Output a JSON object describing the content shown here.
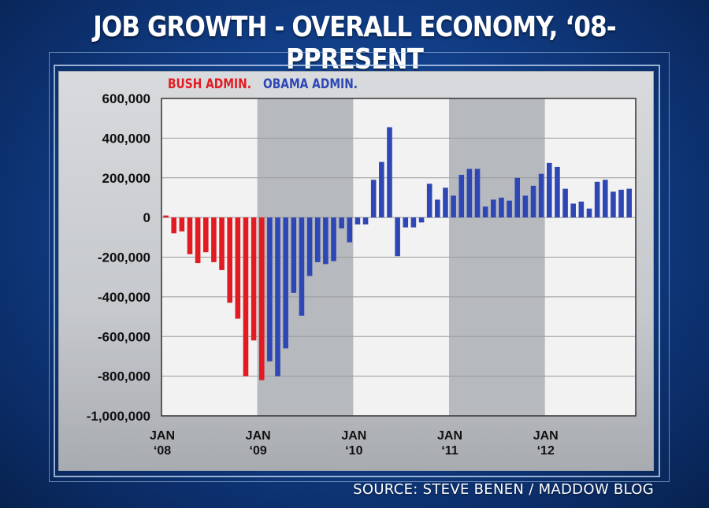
{
  "page": {
    "title": "JOB GROWTH - OVERALL ECONOMY, ‘08-PPRESENT",
    "source": "SOURCE: STEVE BENEN / MADDOW BLOG"
  },
  "colors": {
    "bush": "#e21b22",
    "obama": "#2f47b5",
    "stripe_dark": "#b6b9be",
    "stripe_light": "#f2f2f2",
    "grid": "#9a9a9a"
  },
  "chart_data": {
    "type": "bar",
    "title": "JOB GROWTH - OVERALL ECONOMY, ‘08-PPRESENT",
    "xlabel": "",
    "ylabel": "",
    "ylim": [
      -1000000,
      600000
    ],
    "yticks": [
      600000,
      400000,
      200000,
      0,
      -200000,
      -400000,
      -600000,
      -800000,
      -1000000
    ],
    "ytick_labels": [
      "600,000",
      "400,000",
      "200,000",
      "0",
      "-200,000",
      "-400,000",
      "-600,000",
      "-800,000",
      "-1,000,000"
    ],
    "xtick_labels": [
      {
        "month": "JAN",
        "year": "‘08",
        "index": 0
      },
      {
        "month": "JAN",
        "year": "‘09",
        "index": 12
      },
      {
        "month": "JAN",
        "year": "‘10",
        "index": 24
      },
      {
        "month": "JAN",
        "year": "‘11",
        "index": 36
      },
      {
        "month": "JAN",
        "year": "‘12",
        "index": 48
      }
    ],
    "legend": [
      {
        "name": "BUSH ADMIN.",
        "color": "#e21b22"
      },
      {
        "name": "OBAMA ADMIN.",
        "color": "#2f47b5"
      }
    ],
    "series": [
      {
        "name": "BUSH ADMIN.",
        "start_index": 0,
        "values": [
          10000,
          -80000,
          -70000,
          -185000,
          -230000,
          -175000,
          -225000,
          -265000,
          -430000,
          -510000,
          -800000,
          -620000,
          -820000
        ]
      },
      {
        "name": "OBAMA ADMIN.",
        "start_index": 13,
        "values": [
          -725000,
          -800000,
          -660000,
          -380000,
          -495000,
          -295000,
          -225000,
          -235000,
          -220000,
          -55000,
          -125000,
          -35000,
          -35000,
          190000,
          280000,
          455000,
          -195000,
          -50000,
          -50000,
          -25000,
          170000,
          90000,
          150000,
          110000,
          215000,
          245000,
          245000,
          55000,
          90000,
          100000,
          85000,
          200000,
          110000,
          160000,
          220000,
          275000,
          255000,
          145000,
          70000,
          80000,
          45000,
          180000,
          190000,
          130000,
          140000,
          145000
        ]
      }
    ]
  }
}
